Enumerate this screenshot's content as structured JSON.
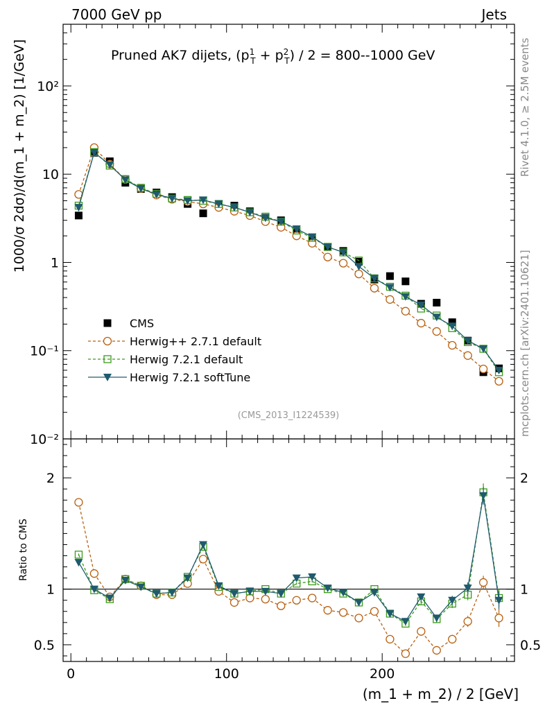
{
  "header": {
    "left": "7000 GeV pp",
    "right": "Jets"
  },
  "side": {
    "rivet": "Rivet 4.1.0, ≥ 2.5M events",
    "mcplots": "mcplots.cern.ch [arXiv:2401.10621]"
  },
  "chart_data": [
    {
      "type": "line",
      "panel": "main",
      "title_base": "Pruned AK7 dijets, (p",
      "title_tail": ") / 2 = 800--1000 GeV",
      "ylabel": "1000/σ  2dσ)/d(m_1 + m_2) [1/GeV]",
      "ylog": true,
      "ylim": [
        0.01,
        500
      ],
      "xlim": [
        -5,
        285
      ],
      "yticks": [
        {
          "value": 0.01,
          "label": "10⁻²"
        },
        {
          "value": 0.1,
          "label": "10⁻¹"
        },
        {
          "value": 1,
          "label": "1"
        },
        {
          "value": 10,
          "label": "10"
        },
        {
          "value": 100,
          "label": "10²"
        }
      ],
      "watermark": "(CMS_2013_I1224539)",
      "x": [
        5,
        15,
        25,
        35,
        45,
        55,
        65,
        75,
        85,
        95,
        105,
        115,
        125,
        135,
        145,
        155,
        165,
        175,
        185,
        195,
        205,
        215,
        225,
        235,
        245,
        255,
        265,
        275
      ],
      "series": [
        {
          "name": "CMS",
          "color": "#000000",
          "marker": "square",
          "values": [
            3.4,
            17.5,
            14.0,
            8.0,
            6.8,
            6.2,
            5.5,
            4.6,
            3.6,
            4.5,
            4.4,
            3.8,
            3.2,
            3.0,
            2.2,
            1.8,
            1.5,
            1.35,
            1.02,
            0.64,
            0.7,
            0.61,
            0.34,
            0.35,
            0.21,
            0.13,
            0.057,
            0.063
          ]
        },
        {
          "name": "Herwig++ 2.7.1 default",
          "color": "#b8600f",
          "marker": "circle",
          "dash": "4,3",
          "values": [
            5.9,
            20.0,
            13.0,
            8.7,
            6.9,
            5.8,
            5.2,
            4.9,
            4.6,
            4.2,
            3.8,
            3.4,
            2.9,
            2.5,
            2.0,
            1.65,
            1.15,
            0.98,
            0.74,
            0.51,
            0.38,
            0.28,
            0.205,
            0.165,
            0.115,
            0.088,
            0.062,
            0.045
          ]
        },
        {
          "name": "Herwig 7.2.1 default",
          "color": "#3a9a1a",
          "marker": "opensquare",
          "dash": "4,3",
          "values": [
            4.4,
            17.8,
            12.5,
            8.8,
            7.0,
            6.0,
            5.3,
            5.1,
            5.0,
            4.6,
            4.2,
            3.7,
            3.3,
            2.9,
            2.3,
            1.9,
            1.5,
            1.3,
            1.05,
            0.66,
            0.53,
            0.42,
            0.3,
            0.25,
            0.18,
            0.125,
            0.105,
            0.057
          ]
        },
        {
          "name": "Herwig 7.2.1 softTune",
          "color": "#1f5a6e",
          "marker": "triangle",
          "values": [
            4.2,
            17.6,
            12.8,
            8.6,
            6.9,
            5.9,
            5.3,
            5.0,
            5.1,
            4.6,
            4.2,
            3.7,
            3.2,
            2.9,
            2.4,
            1.95,
            1.5,
            1.3,
            0.9,
            0.66,
            0.52,
            0.41,
            0.33,
            0.24,
            0.19,
            0.13,
            0.105,
            0.06
          ]
        }
      ]
    },
    {
      "type": "line",
      "panel": "ratio",
      "ylabel": "Ratio to CMS",
      "xlabel": "(m_1 + m_2) / 2 [GeV]",
      "ylim": [
        0.35,
        2.35
      ],
      "xlim": [
        -5,
        285
      ],
      "xticks": [
        {
          "value": 0,
          "label": "0"
        },
        {
          "value": 100,
          "label": "100"
        },
        {
          "value": 200,
          "label": "200"
        }
      ],
      "yticks": [
        {
          "value": 0.5,
          "label": "0.5"
        },
        {
          "value": 1,
          "label": "1"
        },
        {
          "value": 2,
          "label": "2"
        }
      ],
      "x": [
        5,
        15,
        25,
        35,
        45,
        55,
        65,
        75,
        85,
        95,
        105,
        115,
        125,
        135,
        145,
        155,
        165,
        175,
        185,
        195,
        205,
        215,
        225,
        235,
        245,
        255,
        265,
        275
      ],
      "series": [
        {
          "name": "Herwig++ 2.7.1 default",
          "values": [
            1.78,
            1.14,
            0.93,
            1.09,
            1.03,
            0.95,
            0.95,
            1.05,
            1.27,
            0.98,
            0.88,
            0.92,
            0.91,
            0.85,
            0.9,
            0.92,
            0.81,
            0.79,
            0.74,
            0.8,
            0.55,
            0.42,
            0.62,
            0.45,
            0.55,
            0.71,
            1.06,
            0.74
          ],
          "errors": [
            0.01,
            0.01,
            0.01,
            0.01,
            0.01,
            0.01,
            0.01,
            0.01,
            0.01,
            0.01,
            0.01,
            0.01,
            0.01,
            0.01,
            0.01,
            0.01,
            0.01,
            0.01,
            0.01,
            0.01,
            0.02,
            0.02,
            0.03,
            0.03,
            0.04,
            0.05,
            0.06,
            0.08
          ]
        },
        {
          "name": "Herwig 7.2.1 default",
          "values": [
            1.31,
            0.99,
            0.91,
            1.09,
            1.03,
            0.96,
            0.97,
            1.11,
            1.38,
            1.02,
            0.96,
            0.98,
            1.0,
            0.96,
            1.05,
            1.07,
            1.0,
            0.96,
            0.88,
            1.0,
            0.78,
            0.69,
            0.89,
            0.73,
            0.87,
            0.95,
            1.87,
            0.92
          ],
          "errors": [
            0.01,
            0.01,
            0.01,
            0.01,
            0.01,
            0.01,
            0.01,
            0.01,
            0.01,
            0.01,
            0.01,
            0.01,
            0.01,
            0.01,
            0.01,
            0.01,
            0.01,
            0.01,
            0.01,
            0.01,
            0.02,
            0.02,
            0.03,
            0.03,
            0.04,
            0.05,
            0.08,
            0.08
          ]
        },
        {
          "name": "Herwig 7.2.1 softTune",
          "values": [
            1.24,
            1.0,
            0.92,
            1.08,
            1.02,
            0.96,
            0.97,
            1.1,
            1.4,
            1.03,
            0.96,
            0.98,
            0.98,
            0.96,
            1.1,
            1.11,
            1.01,
            0.97,
            0.88,
            0.97,
            0.78,
            0.71,
            0.93,
            0.74,
            0.9,
            1.01,
            1.84,
            0.9
          ],
          "errors": [
            0.01,
            0.01,
            0.01,
            0.01,
            0.01,
            0.01,
            0.01,
            0.01,
            0.01,
            0.01,
            0.01,
            0.01,
            0.01,
            0.01,
            0.01,
            0.01,
            0.01,
            0.01,
            0.01,
            0.01,
            0.02,
            0.02,
            0.03,
            0.03,
            0.04,
            0.05,
            0.08,
            0.08
          ]
        }
      ]
    }
  ]
}
